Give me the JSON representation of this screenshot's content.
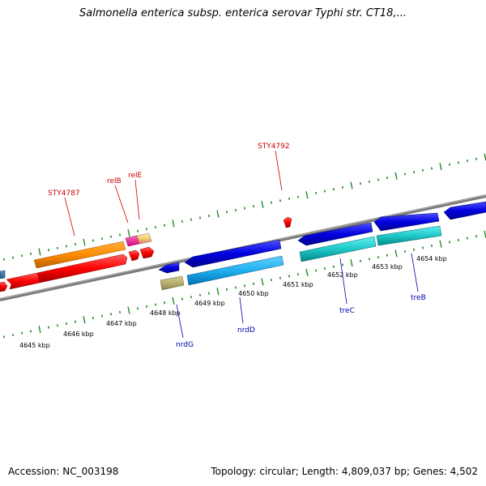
{
  "title": "Salmonella enterica subsp. enterica serovar Typhi str. CT18,...",
  "footer": {
    "accession": "Accession: NC_003198",
    "stats": "Topology: circular; Length: 4,809,037 bp; Genes: 4,502"
  },
  "colors": {
    "forward_label": "#cc0000",
    "reverse_label": "#0000aa",
    "tick": "#228b22",
    "backbone": "#888888"
  },
  "scale_labels": [
    "4645 kbp",
    "4646 kbp",
    "4647 kbp",
    "4648 kbp",
    "4649 kbp",
    "4650 kbp",
    "4651 kbp",
    "4652 kbp",
    "4653 kbp",
    "4654 kbp"
  ],
  "gene_labels": {
    "forward": [
      "STY4787",
      "relB",
      "relE",
      "STY4792"
    ],
    "reverse": [
      "nrdG",
      "nrdD",
      "treC",
      "treB"
    ]
  }
}
